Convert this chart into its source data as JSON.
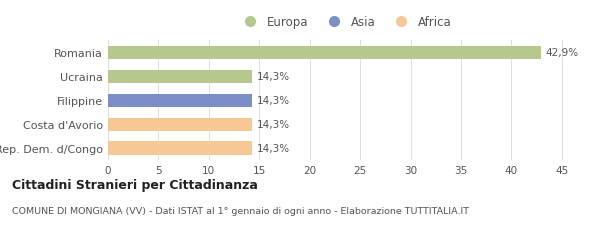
{
  "categories": [
    "Romania",
    "Ucraina",
    "Filippine",
    "Costa d'Avorio",
    "Rep. Dem. d/Congo"
  ],
  "values": [
    42.9,
    14.3,
    14.3,
    14.3,
    14.3
  ],
  "labels": [
    "42,9%",
    "14,3%",
    "14,3%",
    "14,3%",
    "14,3%"
  ],
  "colors": [
    "#b5c98e",
    "#b5c98e",
    "#7b8ec8",
    "#f5c896",
    "#f5c896"
  ],
  "legend_items": [
    {
      "label": "Europa",
      "color": "#b5c98e"
    },
    {
      "label": "Asia",
      "color": "#7b8ec8"
    },
    {
      "label": "Africa",
      "color": "#f5c896"
    }
  ],
  "xlim": [
    0,
    47
  ],
  "xticks": [
    0,
    5,
    10,
    15,
    20,
    25,
    30,
    35,
    40,
    45
  ],
  "title_bold": "Cittadini Stranieri per Cittadinanza",
  "subtitle": "COMUNE DI MONGIANA (VV) - Dati ISTAT al 1° gennaio di ogni anno - Elaborazione TUTTITALIA.IT",
  "background_color": "#ffffff",
  "bar_height": 0.55,
  "label_fontsize": 7.5,
  "tick_fontsize": 7.5,
  "category_fontsize": 8.0
}
